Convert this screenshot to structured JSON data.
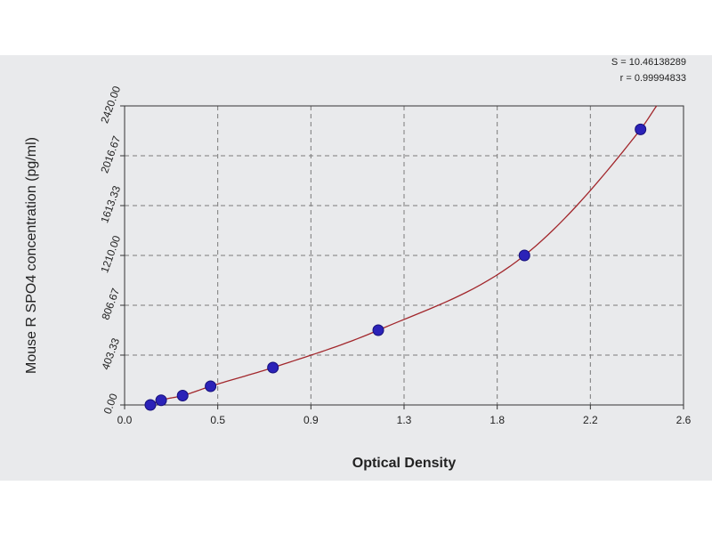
{
  "chart_data": {
    "type": "scatter",
    "xlabel": "Optical Density",
    "ylabel": "Mouse R SPO4 concentration (pg/ml)",
    "xlim": [
      0,
      2.6
    ],
    "ylim": [
      0,
      2420
    ],
    "x_ticks": [
      "0.0",
      "0.5",
      "0.9",
      "1.3",
      "1.8",
      "2.2",
      "2.6"
    ],
    "y_ticks": [
      "0.00",
      "403.33",
      "806.67",
      "1210.00",
      "1613.33",
      "2016.67",
      "2420.00"
    ],
    "grid": true,
    "stats": [
      "S = 10.46138289",
      "r = 0.99994833"
    ],
    "points": [
      {
        "x": 0.12,
        "y": 0
      },
      {
        "x": 0.17,
        "y": 37.81
      },
      {
        "x": 0.27,
        "y": 75.63
      },
      {
        "x": 0.4,
        "y": 151.25
      },
      {
        "x": 0.69,
        "y": 302.5
      },
      {
        "x": 1.18,
        "y": 605
      },
      {
        "x": 1.86,
        "y": 1210
      },
      {
        "x": 2.4,
        "y": 2230
      }
    ],
    "curve": {
      "type": "fitted",
      "color": "#a2272c"
    },
    "point_color": "#2b22b8"
  }
}
